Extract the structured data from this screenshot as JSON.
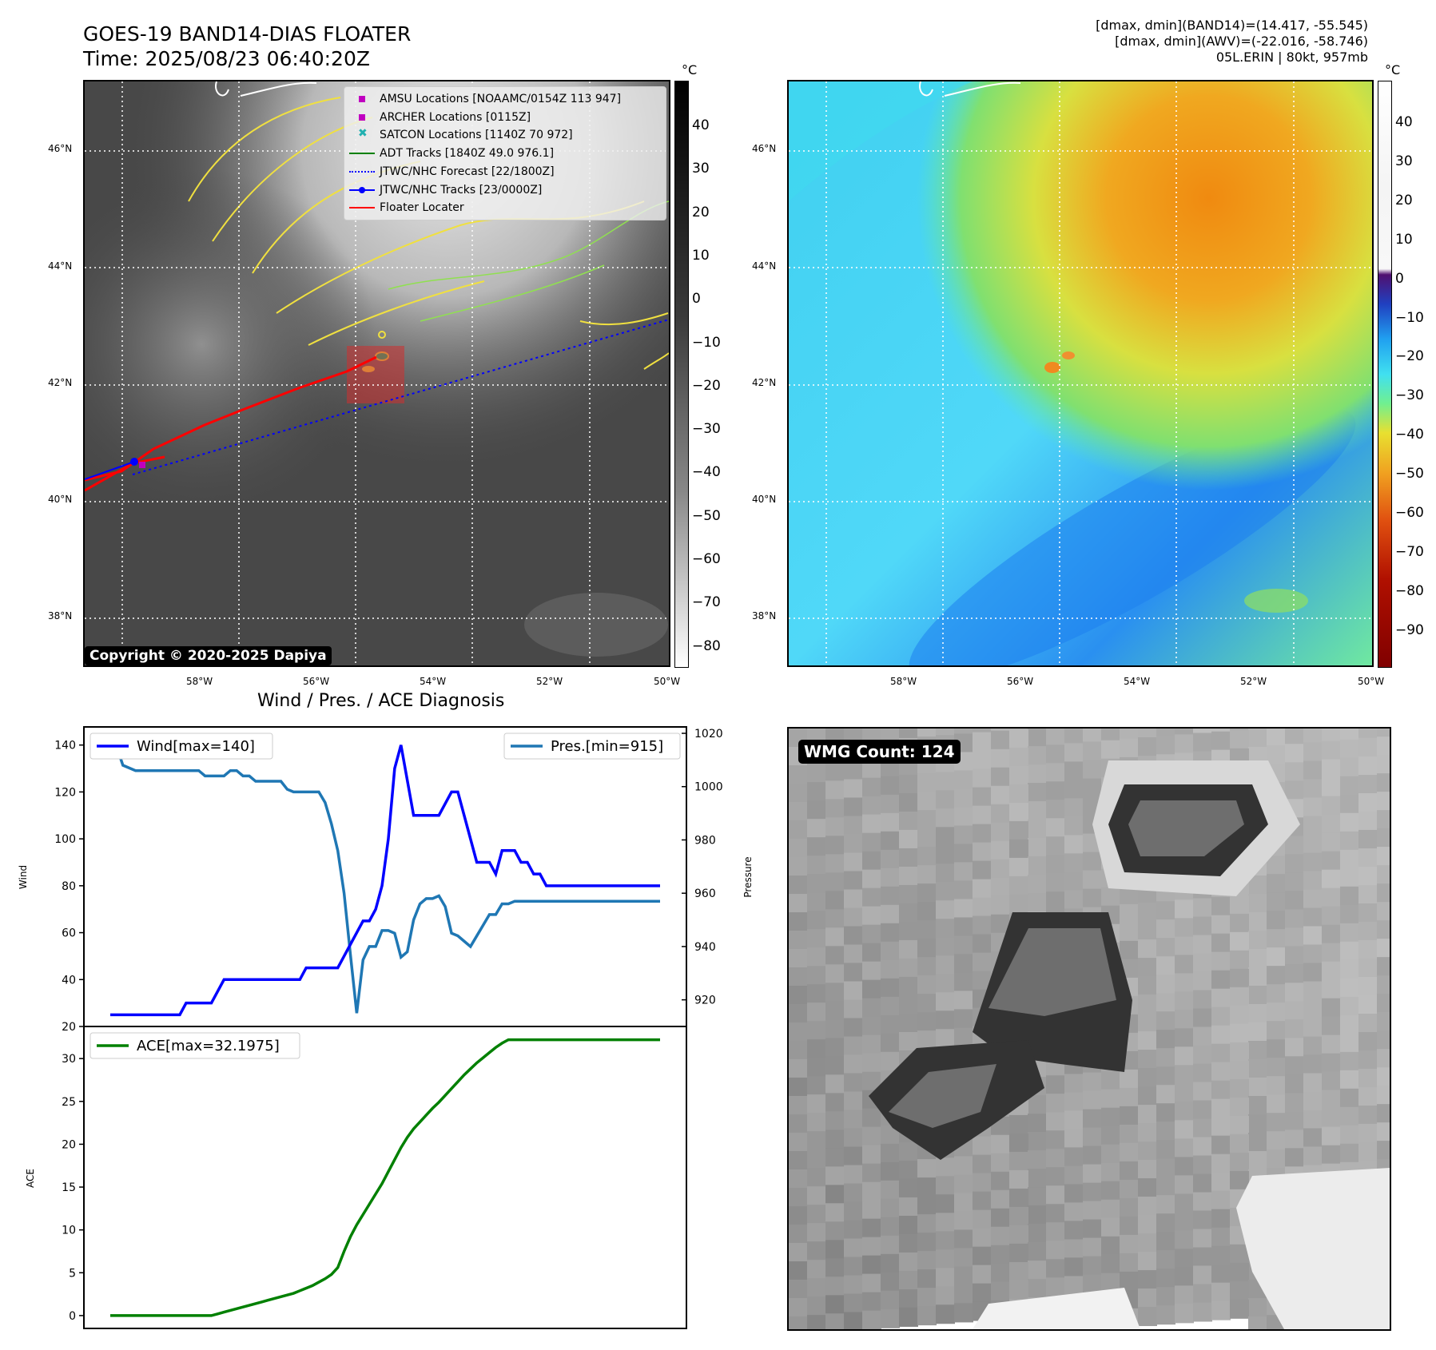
{
  "header": {
    "title_line1": "GOES-19 BAND14-DIAS FLOATER",
    "title_line2": "Time: 2025/08/23 06:40:20Z",
    "stats_line1": "[dmax, dmin](BAND14)=(14.417, -55.545)",
    "stats_line2": "[dmax, dmin](AWV)=(-22.016, -58.746)",
    "stats_line3": "05L.ERIN | 80kt, 957mb"
  },
  "maps": {
    "lat_ticks": [
      "46°N",
      "44°N",
      "42°N",
      "40°N",
      "38°N"
    ],
    "lon_ticks": [
      "58°W",
      "56°W",
      "54°W",
      "52°W",
      "50°W"
    ],
    "unit": "°C",
    "gray_colorbar_ticks": [
      "40",
      "30",
      "20",
      "10",
      "0",
      "−10",
      "−20",
      "−30",
      "−40",
      "−50",
      "−60",
      "−70",
      "−80"
    ],
    "color_colorbar_ticks": [
      "40",
      "30",
      "20",
      "10",
      "0",
      "−10",
      "−20",
      "−30",
      "−40",
      "−50",
      "−60",
      "−70",
      "−80",
      "−90"
    ],
    "copyright": "Copyright © 2020-2025 Dapiya",
    "legend": [
      {
        "label": "AMSU Locations [NOAAMC/0154Z 113 947]",
        "symbol": "square",
        "color": "#c000c0"
      },
      {
        "label": "ARCHER Locations [0115Z]",
        "symbol": "square",
        "color": "#c000c0"
      },
      {
        "label": "SATCON Locations [1140Z 70 972]",
        "symbol": "x",
        "color": "#20b0b0"
      },
      {
        "label": "ADT Tracks [1840Z 49.0 976.1]",
        "symbol": "line",
        "color": "#008000"
      },
      {
        "label": "JTWC/NHC Forecast [22/1800Z]",
        "symbol": "dotted",
        "color": "#0000ff"
      },
      {
        "label": "JTWC/NHC Tracks [23/0000Z]",
        "symbol": "line-dot",
        "color": "#0000ff"
      },
      {
        "label": "Floater Locater",
        "symbol": "line",
        "color": "#ff0000"
      }
    ]
  },
  "diagnosis": {
    "title": "Wind / Pres. / ACE Diagnosis",
    "wind_legend": "Wind[max=140]",
    "pres_legend": "Pres.[min=915]",
    "ace_legend": "ACE[max=32.1975]",
    "wind_axis_label": "Wind",
    "pres_axis_label": "Pressure",
    "ace_axis_label": "ACE",
    "colors": {
      "wind": "#0000ff",
      "pres": "#1f77b4",
      "ace": "#008000"
    }
  },
  "wmg": {
    "label": "WMG Count: 124"
  },
  "chart_data": [
    {
      "type": "line",
      "title": "Wind / Pres. / ACE Diagnosis",
      "x": [
        0,
        1,
        2,
        3,
        4,
        5,
        6,
        7,
        8,
        9,
        10,
        11,
        12,
        13,
        14,
        15,
        16,
        17,
        18,
        19,
        20,
        21,
        22,
        23,
        24,
        25,
        26,
        27,
        28,
        29,
        30,
        31,
        32,
        33,
        34,
        35,
        36,
        37,
        38,
        39,
        40,
        41,
        42,
        43,
        44,
        45,
        46,
        47,
        48,
        49,
        50,
        51,
        52,
        53,
        54,
        55,
        56,
        57,
        58,
        59,
        60,
        61,
        62,
        63,
        64,
        65,
        66,
        67,
        68,
        69,
        70,
        71,
        72,
        73,
        74,
        75,
        76,
        77,
        78,
        79,
        80,
        81,
        82,
        83,
        84,
        85,
        86,
        87
      ],
      "ylim": [
        20,
        145
      ],
      "y2lim": [
        910,
        1020
      ],
      "series": [
        {
          "name": "Wind[max=140]",
          "axis": "left",
          "values": [
            25,
            25,
            25,
            25,
            25,
            25,
            25,
            25,
            25,
            25,
            25,
            25,
            30,
            30,
            30,
            30,
            30,
            35,
            40,
            40,
            40,
            40,
            40,
            40,
            40,
            40,
            40,
            40,
            40,
            40,
            40,
            45,
            45,
            45,
            45,
            45,
            45,
            50,
            55,
            60,
            65,
            65,
            70,
            80,
            100,
            130,
            140,
            125,
            110,
            110,
            110,
            110,
            110,
            115,
            120,
            120,
            110,
            100,
            90,
            90,
            90,
            85,
            95,
            95,
            95,
            90,
            90,
            85,
            85,
            80,
            80,
            80,
            80,
            80,
            80,
            80,
            80,
            80,
            80,
            80,
            80,
            80,
            80,
            80,
            80,
            80,
            80,
            80
          ]
        },
        {
          "name": "Pres.[min=915]",
          "axis": "right",
          "values": [
            1015,
            1015,
            1008,
            1007,
            1006,
            1006,
            1006,
            1006,
            1006,
            1006,
            1006,
            1006,
            1006,
            1006,
            1006,
            1004,
            1004,
            1004,
            1004,
            1006,
            1006,
            1004,
            1004,
            1002,
            1002,
            1002,
            1002,
            1002,
            999,
            998,
            998,
            998,
            998,
            998,
            994,
            986,
            976,
            960,
            937,
            915,
            935,
            940,
            940,
            946,
            946,
            945,
            936,
            938,
            950,
            956,
            958,
            958,
            959,
            955,
            945,
            944,
            942,
            940,
            944,
            948,
            952,
            952,
            956,
            956,
            957,
            957,
            957,
            957,
            957,
            957,
            957,
            957,
            957,
            957,
            957,
            957,
            957,
            957,
            957,
            957,
            957,
            957,
            957,
            957,
            957,
            957,
            957,
            957
          ]
        },
        {
          "name": "ACE[max=32.1975]",
          "axis": "left-bottom",
          "ylim": [
            -1.5,
            33
          ],
          "values": [
            0,
            0,
            0,
            0,
            0,
            0,
            0,
            0,
            0,
            0,
            0,
            0,
            0,
            0,
            0,
            0,
            0,
            0.2,
            0.4,
            0.6,
            0.8,
            1.0,
            1.2,
            1.4,
            1.6,
            1.8,
            2.0,
            2.2,
            2.4,
            2.6,
            2.9,
            3.2,
            3.5,
            3.9,
            4.3,
            4.8,
            5.6,
            7.5,
            9.2,
            10.6,
            11.8,
            13.0,
            14.2,
            15.4,
            16.8,
            18.2,
            19.6,
            20.8,
            21.8,
            22.6,
            23.4,
            24.2,
            24.9,
            25.7,
            26.5,
            27.3,
            28.1,
            28.8,
            29.5,
            30.1,
            30.7,
            31.3,
            31.8,
            32.2,
            32.2,
            32.2,
            32.2,
            32.2,
            32.2,
            32.2,
            32.2,
            32.2,
            32.2,
            32.2,
            32.2,
            32.2,
            32.2,
            32.2,
            32.2,
            32.2,
            32.2,
            32.2,
            32.2,
            32.2,
            32.2,
            32.2,
            32.2,
            32.2
          ]
        }
      ],
      "wind_ticks": [
        "140",
        "120",
        "100",
        "80",
        "60",
        "40",
        "20"
      ],
      "pres_ticks": [
        "1020",
        "1000",
        "980",
        "960",
        "940",
        "920"
      ],
      "ace_ticks": [
        "30",
        "25",
        "20",
        "15",
        "10",
        "5",
        "0"
      ]
    }
  ]
}
